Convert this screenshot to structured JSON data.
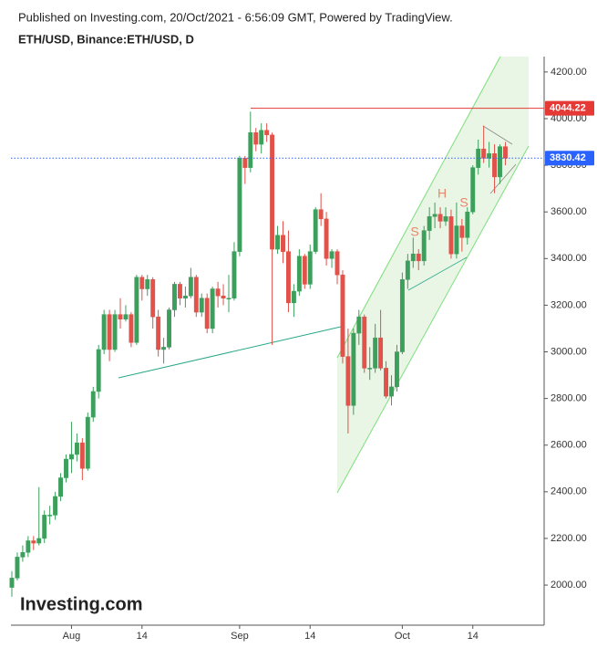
{
  "chart_data": {
    "type": "candlestick",
    "subtitle": "Published on Investing.com, 20/Oct/2021 - 6:56:09 GMT, Powered by TradingView.",
    "title": "ETH/USD, Binance:ETH/USD, D",
    "logo": "Investing.com",
    "up_color": "#3c9f5c",
    "down_color": "#e0524a",
    "categories": [
      null,
      null,
      null,
      null,
      null,
      null,
      null,
      null,
      null,
      null,
      null,
      "Aug",
      null,
      null,
      null,
      null,
      null,
      null,
      null,
      null,
      null,
      null,
      null,
      null,
      "14",
      null,
      null,
      null,
      null,
      null,
      null,
      null,
      null,
      null,
      null,
      null,
      null,
      null,
      null,
      null,
      null,
      null,
      "Sep",
      null,
      null,
      null,
      null,
      null,
      null,
      null,
      null,
      null,
      null,
      null,
      null,
      "14",
      null,
      null,
      null,
      null,
      null,
      null,
      null,
      null,
      null,
      null,
      null,
      null,
      null,
      null,
      null,
      null,
      "Oct",
      null,
      null,
      null,
      null,
      null,
      null,
      null,
      null,
      null,
      null,
      null,
      null,
      "14",
      null,
      null,
      null,
      null,
      null,
      null
    ],
    "open": [
      1990,
      2030,
      2120,
      2140,
      2190,
      2180,
      2200,
      2300,
      2300,
      2380,
      2460,
      2540,
      2560,
      2610,
      2500,
      2720,
      2830,
      3010,
      3160,
      3010,
      3160,
      3140,
      3160,
      3040,
      3320,
      3270,
      3310,
      3150,
      3010,
      3020,
      3180,
      3290,
      3230,
      3240,
      3320,
      3170,
      3230,
      3100,
      3270,
      3240,
      3230,
      3230,
      3430,
      3830,
      3790,
      3940,
      3890,
      3950,
      3930,
      3440,
      3500,
      3430,
      3210,
      3260,
      3410,
      3290,
      3430,
      3610,
      3570,
      3400,
      3430,
      3330,
      2980,
      2770,
      3080,
      3150,
      2930,
      2930,
      3060,
      2930,
      2810,
      2850,
      3000,
      3310,
      3390,
      3420,
      3390,
      3520,
      3580,
      3590,
      3560,
      3580,
      3420,
      3540,
      3490,
      3600,
      3790,
      3870,
      3830,
      3850,
      3750,
      3880
    ],
    "high": [
      2060,
      2140,
      2170,
      2210,
      2210,
      2420,
      2320,
      2340,
      2400,
      2480,
      2560,
      2700,
      2650,
      2630,
      2740,
      2850,
      3030,
      3180,
      3180,
      3180,
      3230,
      3200,
      3170,
      3330,
      3330,
      3330,
      3320,
      3180,
      3060,
      3190,
      3300,
      3300,
      3280,
      3360,
      3330,
      3250,
      3250,
      3280,
      3300,
      3290,
      3330,
      3470,
      3840,
      3840,
      4030,
      3960,
      3980,
      3980,
      3940,
      3540,
      3560,
      3520,
      3290,
      3440,
      3420,
      3460,
      3620,
      3680,
      3600,
      3440,
      3440,
      3350,
      3100,
      3100,
      3180,
      3160,
      3020,
      3120,
      3180,
      2960,
      2900,
      3030,
      3340,
      3420,
      3490,
      3440,
      3540,
      3620,
      3640,
      3620,
      3620,
      3610,
      3640,
      3570,
      3620,
      3800,
      3910,
      3970,
      3900,
      3890,
      3890,
      3900
    ],
    "low": [
      1950,
      2020,
      2100,
      2120,
      2150,
      2170,
      2180,
      2260,
      2280,
      2360,
      2440,
      2480,
      2530,
      2450,
      2490,
      2700,
      2800,
      2990,
      2960,
      3000,
      3100,
      3130,
      3020,
      3030,
      3220,
      3240,
      3100,
      2980,
      2950,
      3010,
      3150,
      3200,
      3190,
      3230,
      3150,
      3150,
      3080,
      3080,
      3190,
      3200,
      3170,
      3220,
      3410,
      3720,
      3770,
      3860,
      3850,
      3900,
      3030,
      3420,
      3380,
      3170,
      3150,
      3240,
      3270,
      3270,
      3420,
      3540,
      3370,
      3360,
      3290,
      2950,
      2650,
      2730,
      3030,
      2910,
      2880,
      2910,
      2920,
      2800,
      2770,
      2830,
      2990,
      3270,
      3360,
      3350,
      3370,
      3480,
      3530,
      3530,
      3540,
      3400,
      3400,
      3430,
      3460,
      3590,
      3760,
      3810,
      3790,
      3680,
      3720,
      3800
    ],
    "close": [
      2030,
      2120,
      2140,
      2190,
      2180,
      2200,
      2300,
      2300,
      2380,
      2460,
      2540,
      2560,
      2610,
      2500,
      2720,
      2830,
      3010,
      3160,
      3010,
      3160,
      3140,
      3160,
      3040,
      3320,
      3270,
      3310,
      3150,
      3010,
      3020,
      3180,
      3290,
      3230,
      3240,
      3320,
      3170,
      3230,
      3100,
      3270,
      3240,
      3230,
      3230,
      3430,
      3830,
      3790,
      3940,
      3890,
      3950,
      3930,
      3440,
      3500,
      3430,
      3210,
      3260,
      3410,
      3290,
      3430,
      3610,
      3570,
      3400,
      3430,
      3330,
      2980,
      2770,
      3080,
      3150,
      2930,
      2930,
      3060,
      2930,
      2810,
      2850,
      3000,
      3310,
      3390,
      3420,
      3390,
      3520,
      3580,
      3590,
      3560,
      3580,
      3420,
      3540,
      3490,
      3600,
      3790,
      3870,
      3830,
      3850,
      3750,
      3880,
      3830
    ],
    "ylim": [
      1828,
      4266
    ],
    "yticks": [
      {
        "value": 2000,
        "label": "2000.00"
      },
      {
        "value": 2200,
        "label": "2200.00"
      },
      {
        "value": 2400,
        "label": "2400.00"
      },
      {
        "value": 2600,
        "label": "2600.00"
      },
      {
        "value": 2800,
        "label": "2800.00"
      },
      {
        "value": 3000,
        "label": "3000.00"
      },
      {
        "value": 3200,
        "label": "3200.00"
      },
      {
        "value": 3400,
        "label": "3400.00"
      },
      {
        "value": 3600,
        "label": "3600.00"
      },
      {
        "value": 3800,
        "label": "3800.00"
      },
      {
        "value": 4000,
        "label": "4000.00"
      },
      {
        "value": 4200,
        "label": "4200.00"
      }
    ],
    "price_lines": [
      {
        "value": 4044.22,
        "label": "4044.22",
        "color": "#e53935",
        "style": "solid"
      },
      {
        "value": 3830.42,
        "label": "3830.42",
        "color": "#2962ff",
        "style": "dotted"
      }
    ],
    "annotations": [
      "S",
      "H",
      "S"
    ]
  }
}
